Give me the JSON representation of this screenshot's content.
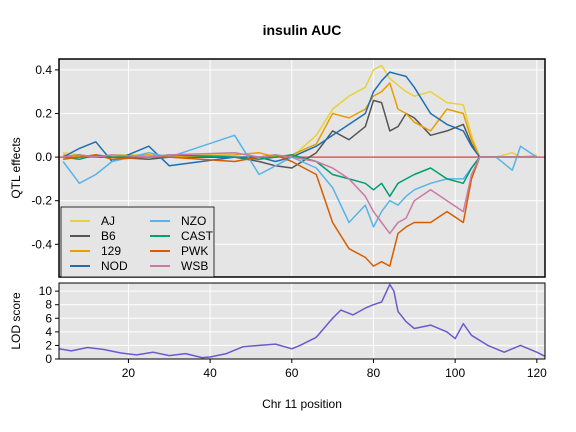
{
  "chart_data": [
    {
      "type": "line",
      "title": "insulin AUC",
      "xlabel": "",
      "ylabel": "QTL effects",
      "xlim": [
        3,
        122
      ],
      "ylim": [
        -0.55,
        0.45
      ],
      "y_ticks": [
        "-0.4",
        "-0.2",
        "0.0",
        "0.2",
        "0.4"
      ],
      "y_tick_values": [
        -0.4,
        -0.2,
        0.0,
        0.2,
        0.4
      ],
      "grid": true,
      "legend_position": "bottom-left",
      "reference_line": {
        "y": 0,
        "color": "#d95f5f"
      },
      "series": [
        {
          "name": "AJ",
          "color": "#e8d13a",
          "x": [
            4,
            8,
            12,
            16,
            25,
            30,
            46,
            52,
            56,
            60,
            66,
            70,
            74,
            78,
            80,
            82,
            84,
            86,
            88,
            90,
            94,
            98,
            102,
            104,
            106,
            110,
            114,
            116,
            120
          ],
          "y": [
            0.02,
            0.01,
            0.0,
            0.01,
            0.01,
            0.0,
            0.02,
            0.0,
            0.01,
            0.0,
            0.1,
            0.22,
            0.28,
            0.32,
            0.4,
            0.42,
            0.36,
            0.33,
            0.3,
            0.28,
            0.3,
            0.25,
            0.24,
            0.1,
            0.0,
            0.0,
            0.02,
            0.0,
            0.01
          ]
        },
        {
          "name": "B6",
          "color": "#555555",
          "x": [
            4,
            8,
            12,
            16,
            25,
            30,
            46,
            52,
            56,
            60,
            66,
            70,
            74,
            78,
            80,
            82,
            84,
            86,
            88,
            90,
            94,
            98,
            102,
            104,
            106,
            110,
            114,
            116,
            120
          ],
          "y": [
            0.0,
            0.01,
            0.0,
            0.0,
            -0.01,
            0.0,
            0.0,
            -0.02,
            -0.04,
            -0.05,
            0.02,
            0.12,
            0.08,
            0.14,
            0.26,
            0.25,
            0.12,
            0.14,
            0.2,
            0.18,
            0.1,
            0.12,
            0.15,
            0.06,
            0.0,
            0.0,
            0.0,
            0.0,
            0.0
          ]
        },
        {
          "name": "129",
          "color": "#e69f00",
          "x": [
            4,
            8,
            12,
            16,
            25,
            30,
            46,
            52,
            56,
            60,
            66,
            70,
            74,
            78,
            80,
            82,
            84,
            86,
            88,
            90,
            94,
            98,
            102,
            104,
            106,
            110,
            114,
            116,
            120
          ],
          "y": [
            0.01,
            0.0,
            0.01,
            0.0,
            0.01,
            0.0,
            0.01,
            0.02,
            0.0,
            0.01,
            0.06,
            0.2,
            0.18,
            0.22,
            0.28,
            0.3,
            0.34,
            0.22,
            0.2,
            0.16,
            0.12,
            0.22,
            0.2,
            0.08,
            0.0,
            0.0,
            0.0,
            0.0,
            0.0
          ]
        },
        {
          "name": "NOD",
          "color": "#1f6fb2",
          "x": [
            4,
            8,
            12,
            16,
            25,
            30,
            46,
            52,
            56,
            60,
            66,
            70,
            74,
            78,
            80,
            82,
            84,
            86,
            88,
            90,
            94,
            98,
            102,
            104,
            106,
            110,
            114,
            116,
            120
          ],
          "y": [
            0.0,
            0.04,
            0.07,
            -0.02,
            0.05,
            -0.04,
            0.0,
            0.0,
            -0.02,
            0.0,
            0.05,
            0.1,
            0.15,
            0.2,
            0.3,
            0.35,
            0.39,
            0.38,
            0.37,
            0.32,
            0.2,
            0.15,
            0.12,
            0.05,
            0.0,
            0.0,
            0.0,
            0.0,
            0.0
          ]
        },
        {
          "name": "NZO",
          "color": "#56b4e9",
          "x": [
            4,
            8,
            12,
            16,
            25,
            30,
            46,
            52,
            56,
            60,
            66,
            70,
            74,
            78,
            80,
            82,
            84,
            86,
            88,
            90,
            94,
            98,
            102,
            104,
            106,
            110,
            114,
            116,
            120
          ],
          "y": [
            -0.02,
            -0.12,
            -0.08,
            -0.02,
            0.02,
            0.0,
            0.1,
            -0.08,
            -0.04,
            0.0,
            -0.05,
            -0.14,
            -0.3,
            -0.22,
            -0.32,
            -0.25,
            -0.2,
            -0.22,
            -0.18,
            -0.15,
            -0.12,
            -0.1,
            -0.1,
            -0.05,
            0.0,
            0.0,
            -0.06,
            0.05,
            0.0
          ]
        },
        {
          "name": "CAST",
          "color": "#009e73",
          "x": [
            4,
            8,
            12,
            16,
            25,
            30,
            46,
            52,
            56,
            60,
            66,
            70,
            74,
            78,
            80,
            82,
            84,
            86,
            88,
            90,
            94,
            98,
            102,
            104,
            106,
            110,
            114,
            116,
            120
          ],
          "y": [
            0.0,
            -0.01,
            0.01,
            0.0,
            0.0,
            0.01,
            0.0,
            -0.01,
            0.0,
            0.01,
            -0.02,
            -0.08,
            -0.1,
            -0.12,
            -0.15,
            -0.12,
            -0.18,
            -0.12,
            -0.1,
            -0.08,
            -0.05,
            -0.1,
            -0.12,
            -0.05,
            0.0,
            0.0,
            0.0,
            0.0,
            0.0
          ]
        },
        {
          "name": "PWK",
          "color": "#d55e00",
          "x": [
            4,
            8,
            12,
            16,
            25,
            30,
            46,
            52,
            56,
            60,
            66,
            70,
            74,
            78,
            80,
            82,
            84,
            86,
            88,
            90,
            94,
            98,
            102,
            104,
            106,
            110,
            114,
            116,
            120
          ],
          "y": [
            -0.01,
            0.0,
            0.01,
            -0.01,
            0.0,
            0.0,
            -0.02,
            0.0,
            0.01,
            -0.02,
            -0.08,
            -0.3,
            -0.42,
            -0.46,
            -0.5,
            -0.48,
            -0.5,
            -0.35,
            -0.32,
            -0.3,
            -0.3,
            -0.25,
            -0.3,
            -0.1,
            0.0,
            0.0,
            0.0,
            0.0,
            0.0
          ]
        },
        {
          "name": "WSB",
          "color": "#cc79a7",
          "x": [
            4,
            8,
            12,
            16,
            25,
            30,
            46,
            52,
            56,
            60,
            66,
            70,
            74,
            78,
            80,
            82,
            84,
            86,
            88,
            90,
            94,
            98,
            102,
            104,
            106,
            110,
            114,
            116,
            120
          ],
          "y": [
            0.0,
            0.01,
            0.0,
            0.01,
            0.0,
            0.01,
            0.02,
            0.0,
            0.01,
            0.0,
            -0.02,
            -0.05,
            -0.1,
            -0.18,
            -0.25,
            -0.3,
            -0.35,
            -0.3,
            -0.28,
            -0.2,
            -0.15,
            -0.2,
            -0.25,
            -0.08,
            0.0,
            0.0,
            0.0,
            0.0,
            0.0
          ]
        }
      ]
    },
    {
      "type": "line",
      "title": "",
      "xlabel": "Chr 11 position",
      "ylabel": "LOD score",
      "xlim": [
        3,
        122
      ],
      "ylim": [
        0,
        11.2
      ],
      "x_ticks": [
        "20",
        "40",
        "60",
        "80",
        "100",
        "120"
      ],
      "x_tick_values": [
        20,
        40,
        60,
        80,
        100,
        120
      ],
      "y_ticks": [
        "0",
        "2",
        "4",
        "6",
        "8",
        "10"
      ],
      "y_tick_values": [
        0,
        2,
        4,
        6,
        8,
        10
      ],
      "grid": true,
      "series": [
        {
          "name": "",
          "color": "#6a5acd",
          "x": [
            3,
            6,
            10,
            14,
            18,
            22,
            26,
            30,
            34,
            38,
            40,
            44,
            48,
            52,
            56,
            60,
            62,
            66,
            70,
            72,
            75,
            78,
            80,
            82,
            84,
            85,
            86,
            88,
            90,
            94,
            98,
            100,
            102,
            104,
            108,
            112,
            116,
            120,
            122
          ],
          "y": [
            1.5,
            1.2,
            1.7,
            1.4,
            0.9,
            0.6,
            1.0,
            0.5,
            0.8,
            0.2,
            0.3,
            0.8,
            1.8,
            2.0,
            2.2,
            1.5,
            2.0,
            3.2,
            6.0,
            7.2,
            6.5,
            7.5,
            8.0,
            8.4,
            11.0,
            10.0,
            7.0,
            5.5,
            4.5,
            5.0,
            4.0,
            3.0,
            5.2,
            3.5,
            2.0,
            1.0,
            2.0,
            1.0,
            0.4
          ]
        }
      ]
    }
  ]
}
